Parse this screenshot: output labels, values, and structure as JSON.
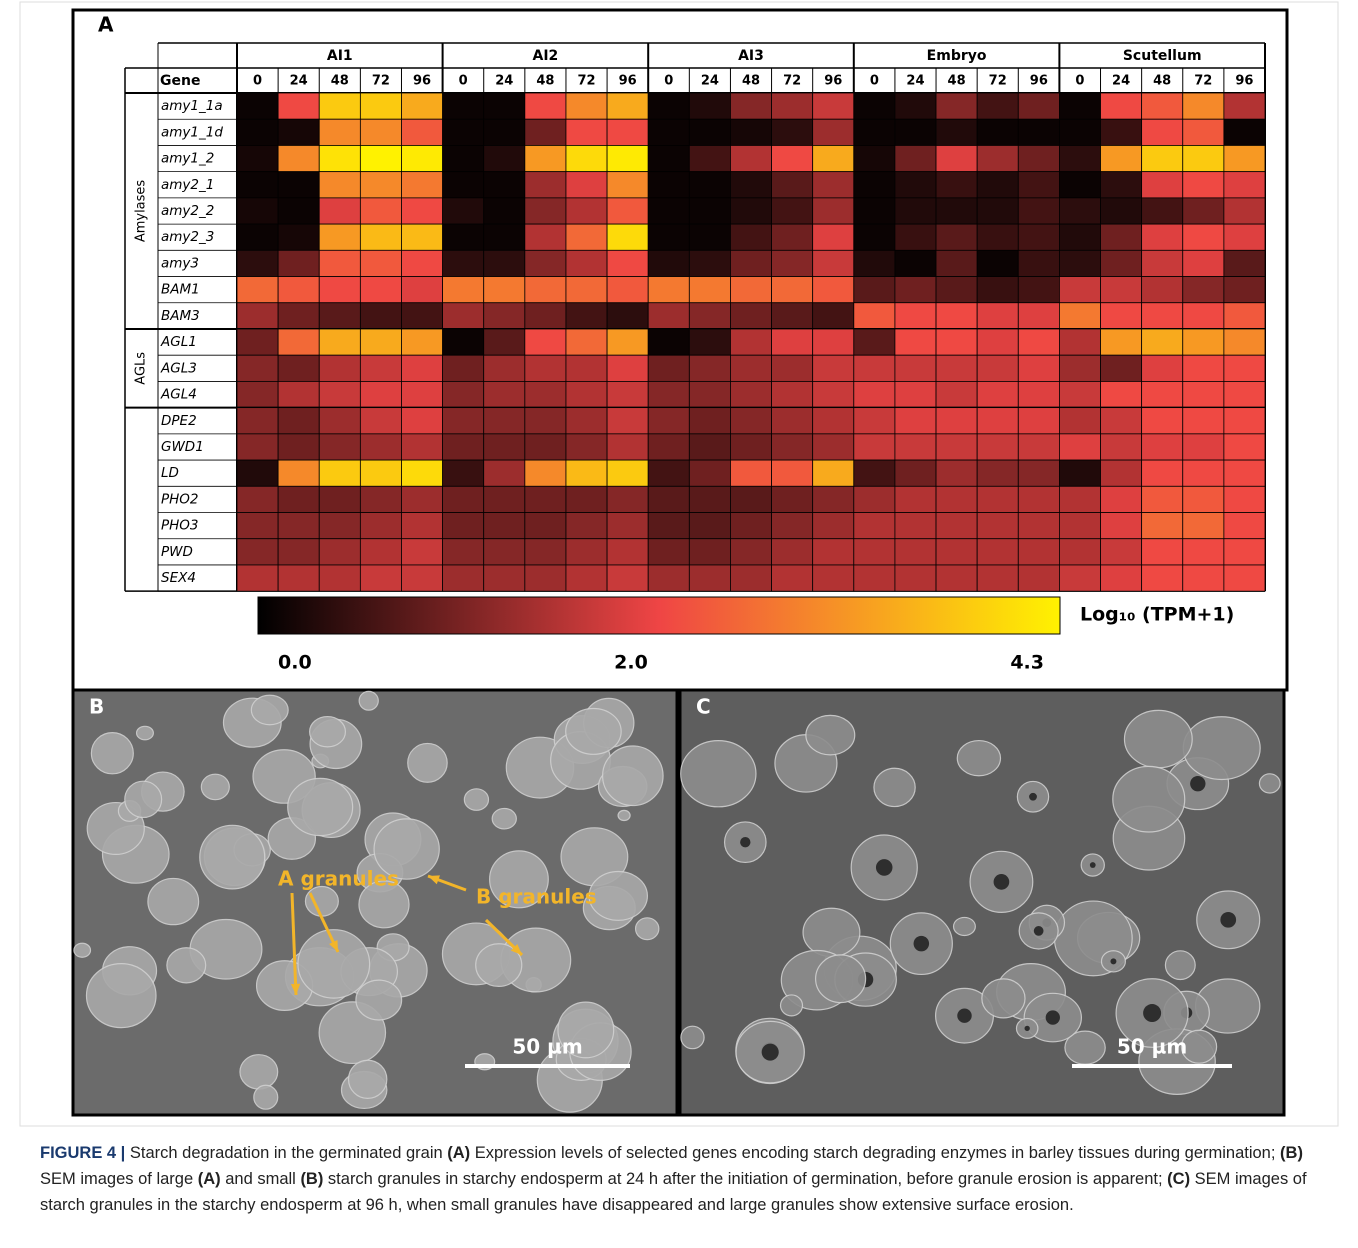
{
  "chart_data": {
    "type": "heatmap",
    "panel_label": "A",
    "row_header": "Gene",
    "groups": [
      "AI1",
      "AI2",
      "AI3",
      "Embryo",
      "Scutellum"
    ],
    "timepoints": [
      "0",
      "24",
      "48",
      "72",
      "96"
    ],
    "row_groups": [
      {
        "label": "Amylases",
        "genes": [
          "amy1_1a",
          "amy1_1d",
          "amy1_2",
          "amy2_1",
          "amy2_2",
          "amy2_3",
          "amy3",
          "BAM1",
          "BAM3"
        ],
        "values": [
          [
            0.1,
            2.2,
            3.8,
            3.8,
            3.4,
            0.1,
            0.1,
            2.2,
            3.0,
            3.4,
            0.1,
            0.3,
            1.2,
            1.4,
            1.8,
            0.1,
            0.3,
            1.2,
            0.6,
            1.0,
            0.1,
            2.2,
            2.4,
            3.0,
            1.6
          ],
          [
            0.1,
            0.2,
            3.0,
            3.0,
            2.4,
            0.1,
            0.1,
            1.0,
            2.2,
            2.2,
            0.1,
            0.1,
            0.2,
            0.4,
            1.4,
            0.1,
            0.1,
            0.3,
            0.1,
            0.1,
            0.1,
            0.5,
            2.2,
            2.4,
            0.1
          ],
          [
            0.2,
            3.0,
            4.1,
            4.3,
            4.2,
            0.1,
            0.3,
            3.2,
            4.0,
            4.2,
            0.1,
            0.6,
            1.6,
            2.2,
            3.4,
            0.2,
            1.0,
            2.0,
            1.4,
            1.0,
            0.4,
            3.2,
            3.8,
            3.8,
            3.2
          ],
          [
            0.1,
            0.1,
            3.0,
            3.0,
            2.8,
            0.1,
            0.1,
            1.4,
            2.0,
            3.0,
            0.1,
            0.1,
            0.3,
            0.8,
            1.4,
            0.1,
            0.3,
            0.5,
            0.3,
            0.6,
            0.1,
            0.4,
            2.0,
            2.2,
            2.0
          ],
          [
            0.2,
            0.1,
            2.0,
            2.4,
            2.2,
            0.3,
            0.1,
            1.2,
            1.6,
            2.4,
            0.1,
            0.1,
            0.3,
            0.6,
            1.4,
            0.1,
            0.3,
            0.3,
            0.3,
            0.6,
            0.4,
            0.3,
            0.6,
            1.0,
            1.6
          ],
          [
            0.1,
            0.2,
            3.2,
            3.6,
            3.6,
            0.1,
            0.1,
            1.6,
            2.6,
            4.0,
            0.1,
            0.1,
            0.6,
            1.0,
            2.0,
            0.1,
            0.5,
            0.8,
            0.5,
            0.6,
            0.3,
            1.0,
            2.0,
            2.2,
            2.0
          ],
          [
            0.4,
            1.0,
            2.4,
            2.4,
            2.2,
            0.4,
            0.4,
            1.2,
            1.6,
            2.2,
            0.3,
            0.4,
            1.0,
            1.2,
            1.8,
            0.3,
            0.1,
            0.8,
            0.1,
            0.5,
            0.4,
            1.0,
            1.8,
            2.0,
            0.8
          ],
          [
            2.6,
            2.4,
            2.2,
            2.2,
            2.0,
            2.8,
            2.8,
            2.6,
            2.6,
            2.4,
            2.8,
            2.8,
            2.6,
            2.6,
            2.4,
            0.8,
            1.0,
            0.8,
            0.5,
            0.6,
            1.8,
            1.8,
            1.6,
            1.2,
            1.0
          ],
          [
            1.4,
            1.0,
            0.8,
            0.6,
            0.6,
            1.4,
            1.2,
            1.0,
            0.6,
            0.4,
            1.4,
            1.2,
            1.0,
            0.8,
            0.6,
            2.4,
            2.2,
            2.2,
            2.0,
            2.0,
            2.8,
            2.2,
            2.2,
            2.2,
            2.4
          ]
        ]
      },
      {
        "label": "AGLs",
        "genes": [
          "AGL1",
          "AGL3",
          "AGL4"
        ],
        "values": [
          [
            1.0,
            2.6,
            3.4,
            3.4,
            3.2,
            0.1,
            0.8,
            2.2,
            2.6,
            3.2,
            0.1,
            0.4,
            1.6,
            2.0,
            2.0,
            0.8,
            2.2,
            2.2,
            2.0,
            2.2,
            1.6,
            3.2,
            3.4,
            3.2,
            3.0
          ],
          [
            1.2,
            1.0,
            1.6,
            1.8,
            2.0,
            1.0,
            1.4,
            1.6,
            1.6,
            2.0,
            1.0,
            1.2,
            1.4,
            1.4,
            1.8,
            1.8,
            1.8,
            1.8,
            1.8,
            2.0,
            1.4,
            1.0,
            2.0,
            2.2,
            2.2
          ],
          [
            1.2,
            1.6,
            1.8,
            2.0,
            2.0,
            1.2,
            1.4,
            1.4,
            1.6,
            1.8,
            1.2,
            1.2,
            1.4,
            1.6,
            1.8,
            2.0,
            2.0,
            1.8,
            2.0,
            2.0,
            1.8,
            2.2,
            2.2,
            2.2,
            2.2
          ]
        ]
      },
      {
        "genes": [
          "DPE2",
          "GWD1",
          "LD",
          "PHO2",
          "PHO3",
          "PWD",
          "SEX4"
        ],
        "values": [
          [
            1.2,
            1.0,
            1.4,
            1.8,
            2.0,
            1.2,
            1.2,
            1.2,
            1.4,
            1.8,
            1.2,
            1.0,
            1.2,
            1.4,
            1.6,
            1.8,
            2.0,
            2.0,
            2.0,
            2.0,
            1.6,
            1.8,
            2.2,
            2.2,
            2.2
          ],
          [
            1.2,
            1.0,
            1.2,
            1.4,
            1.6,
            1.0,
            1.0,
            1.0,
            1.2,
            1.6,
            1.0,
            0.8,
            1.0,
            1.2,
            1.4,
            1.8,
            1.8,
            1.8,
            1.8,
            1.8,
            2.0,
            1.8,
            2.0,
            2.0,
            2.2
          ],
          [
            0.3,
            3.0,
            3.8,
            3.8,
            4.0,
            0.5,
            1.4,
            3.0,
            3.6,
            3.8,
            0.6,
            1.0,
            2.4,
            2.4,
            3.4,
            0.6,
            1.0,
            1.4,
            1.2,
            1.2,
            0.3,
            1.6,
            2.2,
            2.2,
            2.2
          ],
          [
            1.2,
            1.0,
            1.0,
            1.2,
            1.4,
            1.0,
            1.0,
            1.0,
            1.0,
            1.2,
            0.8,
            0.8,
            0.8,
            1.0,
            1.2,
            1.4,
            1.6,
            1.6,
            1.6,
            1.6,
            1.6,
            2.0,
            2.4,
            2.4,
            2.2
          ],
          [
            1.2,
            1.2,
            1.2,
            1.4,
            1.6,
            1.0,
            1.0,
            1.0,
            1.2,
            1.4,
            0.8,
            0.8,
            1.0,
            1.2,
            1.4,
            1.6,
            1.6,
            1.6,
            1.6,
            1.6,
            1.6,
            2.0,
            2.6,
            2.6,
            2.2
          ],
          [
            1.2,
            1.2,
            1.4,
            1.6,
            1.8,
            1.2,
            1.2,
            1.2,
            1.4,
            1.6,
            1.0,
            1.0,
            1.2,
            1.4,
            1.6,
            1.6,
            1.6,
            1.6,
            1.6,
            1.6,
            1.6,
            1.8,
            2.2,
            2.2,
            2.2
          ],
          [
            1.6,
            1.6,
            1.6,
            1.8,
            1.8,
            1.4,
            1.4,
            1.4,
            1.6,
            1.8,
            1.4,
            1.4,
            1.4,
            1.6,
            1.6,
            1.6,
            1.6,
            1.6,
            1.6,
            1.6,
            1.8,
            2.0,
            2.2,
            2.2,
            2.2
          ]
        ]
      }
    ],
    "zlim": [
      0,
      4.3
    ],
    "zticks": [
      {
        "value": 0,
        "label": "0.0"
      },
      {
        "value": 2,
        "label": "2.0"
      },
      4.3
    ],
    "colorbar_label": "Log₁₀ (TPM+1)",
    "colormap": [
      "#000000",
      "#ef4545",
      "#fff200"
    ]
  },
  "panels": [
    {
      "label": "B",
      "annotations": [
        "A granules",
        "B granules"
      ],
      "scale_bar": "50 µm"
    },
    {
      "label": "C",
      "scale_bar": "50 µm"
    }
  ],
  "caption": [
    {
      "text": "FIGURE 4 |",
      "bold": true
    },
    {
      "text": " Starch degradation in the germinated grain ",
      "bold": false
    },
    {
      "text": "(A)",
      "bold": true
    },
    {
      "text": " Expression levels of selected genes encoding starch degrading enzymes in barley tissues during germination; ",
      "bold": false
    },
    {
      "text": "(B)",
      "bold": true
    },
    {
      "text": " SEM images of large ",
      "bold": false
    },
    {
      "text": "(A)",
      "bold": true
    },
    {
      "text": " and small ",
      "bold": false
    },
    {
      "text": "(B)",
      "bold": true
    },
    {
      "text": " starch granules in starchy endosperm at 24 h after the initiation of germination, before granule erosion is apparent; ",
      "bold": false
    },
    {
      "text": "(C)",
      "bold": true
    },
    {
      "text": " SEM images of starch granules in the starchy endosperm at 96 h, when small granules have disappeared and large granules show extensive surface erosion.",
      "bold": false
    }
  ]
}
